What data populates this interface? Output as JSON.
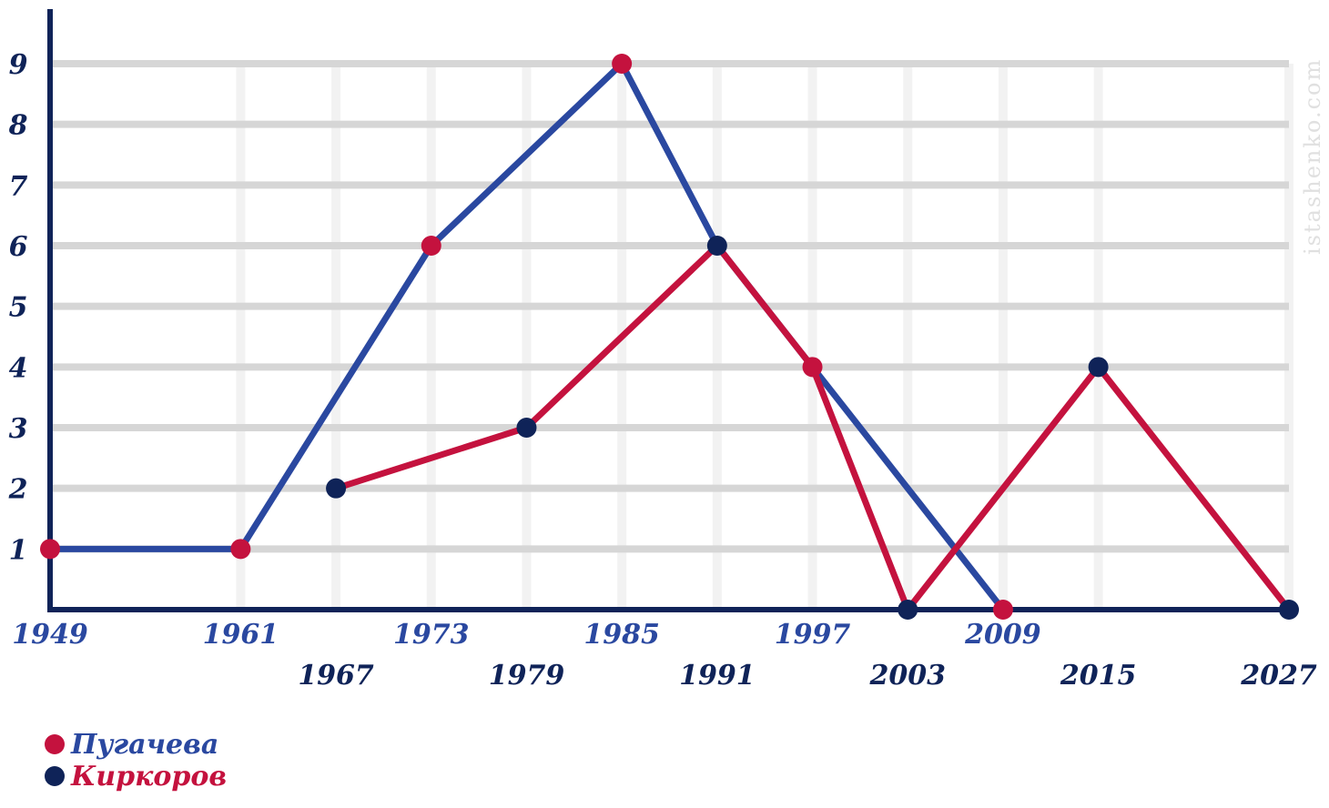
{
  "chart_data": {
    "type": "line",
    "y_ticks": [
      1,
      2,
      3,
      4,
      5,
      6,
      7,
      8,
      9
    ],
    "ylim": [
      0,
      9.9
    ],
    "x_ticks_upper": [
      1949,
      1961,
      1973,
      1985,
      1997,
      2009
    ],
    "x_ticks_lower": [
      1967,
      1979,
      1991,
      2003,
      2015,
      2027
    ],
    "xlim": [
      1949,
      2027
    ],
    "grid": true,
    "series_lines": [
      {
        "line_color": "#2a48a0",
        "points": [
          [
            1949,
            1
          ],
          [
            1961,
            1
          ],
          [
            1973,
            6
          ],
          [
            1985,
            9
          ],
          [
            1991,
            6
          ],
          [
            1997,
            4
          ],
          [
            2003,
            2
          ],
          [
            2009,
            0
          ]
        ]
      },
      {
        "line_color": "#c4123e",
        "points": [
          [
            1967,
            2
          ],
          [
            1979,
            3
          ],
          [
            1991,
            6
          ],
          [
            1997,
            4
          ],
          [
            2003,
            0
          ],
          [
            2015,
            4
          ],
          [
            2027,
            0
          ]
        ]
      }
    ],
    "markers": [
      {
        "x": 1949,
        "y": 1,
        "color": "#c4123e"
      },
      {
        "x": 1961,
        "y": 1,
        "color": "#c4123e"
      },
      {
        "x": 1973,
        "y": 6,
        "color": "#c4123e"
      },
      {
        "x": 1985,
        "y": 9,
        "color": "#c4123e"
      },
      {
        "x": 1997,
        "y": 4,
        "color": "#c4123e"
      },
      {
        "x": 2009,
        "y": 0,
        "color": "#c4123e"
      },
      {
        "x": 1967,
        "y": 2,
        "color": "#0f2358"
      },
      {
        "x": 1979,
        "y": 3,
        "color": "#0f2358"
      },
      {
        "x": 1991,
        "y": 6,
        "color": "#0f2358"
      },
      {
        "x": 2003,
        "y": 0,
        "color": "#0f2358"
      },
      {
        "x": 2015,
        "y": 4,
        "color": "#0f2358"
      },
      {
        "x": 2027,
        "y": 0,
        "color": "#0f2358"
      }
    ],
    "legend": [
      {
        "label": "Пугачева",
        "marker_color": "#c4123e",
        "text_color": "#2a48a0"
      },
      {
        "label": "Киркоров",
        "marker_color": "#0f2358",
        "text_color": "#c4123e"
      }
    ],
    "legend_position": "bottom-left",
    "watermark": "istashenko.com"
  },
  "colors": {
    "axis": "#0f2358",
    "grid": "#d6d6d6",
    "vertical_guides": "#f2f2f2",
    "tick_upper": "#2a48a0",
    "tick_lower": "#0f2358",
    "y_tick": "#0f2358"
  }
}
